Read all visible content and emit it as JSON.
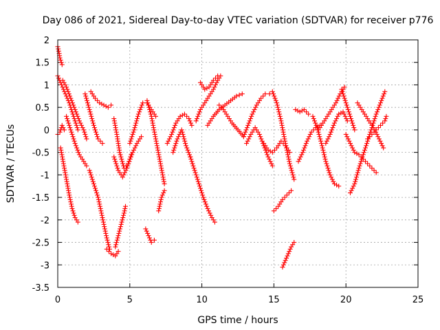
{
  "chart_data": {
    "type": "scatter",
    "title": "Day 086 of 2021, Sidereal Day-to-day VTEC variation (SDTVAR) for receiver p776",
    "xlabel": "GPS time / hours",
    "ylabel": "SDTVAR / TECUs",
    "xlim": [
      0,
      25
    ],
    "ylim": [
      -3.5,
      2
    ],
    "xticks": [
      0,
      5,
      10,
      15,
      20,
      25
    ],
    "xtick_labels": [
      "0",
      "5",
      "10",
      "15",
      "20",
      "25"
    ],
    "yticks": [
      -3.5,
      -3,
      -2.5,
      -2,
      -1.5,
      -1,
      -0.5,
      0,
      0.5,
      1,
      1.5,
      2
    ],
    "ytick_labels": [
      "-3.5",
      "-3",
      "-2.5",
      "-2",
      "-1.5",
      "-1",
      "-0.5",
      "0",
      "0.5",
      "1",
      "1.5",
      "2"
    ],
    "grid": true,
    "marker": "+",
    "color": "#ff0000",
    "series": [
      {
        "name": "s01",
        "x": [
          0.0,
          0.1,
          0.15,
          0.25,
          0.3
        ],
        "y": [
          1.85,
          1.7,
          1.6,
          1.5,
          1.45
        ]
      },
      {
        "name": "s02",
        "x": [
          0.0,
          0.2,
          0.4,
          0.6,
          0.8,
          1.0,
          1.2,
          1.4
        ],
        "y": [
          1.2,
          1.05,
          0.9,
          0.75,
          0.6,
          0.4,
          0.2,
          0.0
        ]
      },
      {
        "name": "s03",
        "x": [
          0.0,
          0.15,
          0.3,
          0.45
        ],
        "y": [
          -0.1,
          -0.05,
          0.1,
          0.0
        ]
      },
      {
        "name": "s04",
        "x": [
          0.2,
          0.4,
          0.6,
          0.8,
          1.0,
          1.2,
          1.4
        ],
        "y": [
          -0.4,
          -0.75,
          -1.1,
          -1.45,
          -1.75,
          -1.95,
          -2.05
        ]
      },
      {
        "name": "s05",
        "x": [
          0.35,
          0.6,
          0.9,
          1.2,
          1.5,
          1.8,
          2.0
        ],
        "y": [
          1.1,
          0.95,
          0.7,
          0.45,
          0.2,
          0.0,
          -0.2
        ]
      },
      {
        "name": "s06",
        "x": [
          0.6,
          0.9,
          1.2,
          1.5,
          1.8,
          2.0
        ],
        "y": [
          0.3,
          0.0,
          -0.3,
          -0.55,
          -0.7,
          -0.8
        ]
      },
      {
        "name": "s07",
        "x": [
          2.3,
          2.6,
          2.9,
          3.2,
          3.5,
          3.7
        ],
        "y": [
          0.85,
          0.7,
          0.6,
          0.55,
          0.5,
          0.55
        ]
      },
      {
        "name": "s08",
        "x": [
          2.2,
          2.5,
          2.8,
          3.0,
          3.2,
          3.4,
          3.6
        ],
        "y": [
          -0.9,
          -1.2,
          -1.5,
          -1.8,
          -2.1,
          -2.4,
          -2.65
        ]
      },
      {
        "name": "s09",
        "x": [
          1.9,
          2.2,
          2.5,
          2.8,
          3.1
        ],
        "y": [
          0.8,
          0.45,
          0.1,
          -0.2,
          -0.3
        ]
      },
      {
        "name": "s10",
        "x": [
          3.4,
          3.7,
          4.0,
          4.2
        ],
        "y": [
          -2.65,
          -2.75,
          -2.8,
          -2.7
        ]
      },
      {
        "name": "s11",
        "x": [
          4.0,
          4.2,
          4.4,
          4.6,
          4.7
        ],
        "y": [
          -2.6,
          -2.35,
          -2.1,
          -1.85,
          -1.7
        ]
      },
      {
        "name": "s12",
        "x": [
          3.9,
          4.1,
          4.3,
          4.6,
          4.9,
          5.2,
          5.5,
          5.8
        ],
        "y": [
          0.25,
          -0.1,
          -0.5,
          -0.85,
          -0.75,
          -0.5,
          -0.3,
          -0.15
        ]
      },
      {
        "name": "s13",
        "x": [
          3.9,
          4.2,
          4.5,
          4.8,
          5.1
        ],
        "y": [
          -0.6,
          -0.9,
          -1.05,
          -0.85,
          -0.55
        ]
      },
      {
        "name": "s14",
        "x": [
          5.0,
          5.3,
          5.6,
          5.9,
          6.2,
          6.5,
          6.8
        ],
        "y": [
          -0.3,
          0.0,
          0.35,
          0.6,
          0.6,
          0.45,
          0.3
        ]
      },
      {
        "name": "s15",
        "x": [
          6.1,
          6.3,
          6.5,
          6.7
        ],
        "y": [
          -2.2,
          -2.35,
          -2.5,
          -2.45
        ]
      },
      {
        "name": "s16",
        "x": [
          6.2,
          6.5,
          6.8,
          7.1,
          7.4
        ],
        "y": [
          0.65,
          0.3,
          -0.2,
          -0.7,
          -1.2
        ]
      },
      {
        "name": "s17",
        "x": [
          7.0,
          7.2,
          7.4
        ],
        "y": [
          -1.8,
          -1.5,
          -1.35
        ]
      },
      {
        "name": "s18",
        "x": [
          7.6,
          7.9,
          8.2,
          8.5,
          8.8,
          9.1,
          9.3
        ],
        "y": [
          -0.3,
          -0.1,
          0.15,
          0.3,
          0.35,
          0.25,
          0.1
        ]
      },
      {
        "name": "s19",
        "x": [
          8.0,
          8.3,
          8.6,
          8.9,
          9.2
        ],
        "y": [
          -0.5,
          -0.2,
          0.0,
          -0.35,
          -0.6
        ]
      },
      {
        "name": "s20",
        "x": [
          9.2,
          9.5,
          9.8,
          10.1,
          10.4,
          10.7,
          10.9
        ],
        "y": [
          -0.6,
          -0.9,
          -1.2,
          -1.5,
          -1.75,
          -1.95,
          -2.05
        ]
      },
      {
        "name": "s21",
        "x": [
          9.6,
          9.9,
          10.2,
          10.5,
          10.8,
          11.1,
          11.3
        ],
        "y": [
          0.2,
          0.45,
          0.6,
          0.75,
          0.9,
          1.1,
          1.2
        ]
      },
      {
        "name": "s22",
        "x": [
          9.9,
          10.2,
          10.5,
          10.8,
          11.1
        ],
        "y": [
          1.05,
          0.9,
          0.95,
          1.1,
          1.2
        ]
      },
      {
        "name": "s23",
        "x": [
          10.4,
          10.8,
          11.2,
          11.6,
          12.0,
          12.4,
          12.8
        ],
        "y": [
          0.1,
          0.3,
          0.45,
          0.55,
          0.65,
          0.75,
          0.8
        ]
      },
      {
        "name": "s24",
        "x": [
          11.2,
          11.5,
          11.8,
          12.1,
          12.5,
          12.9
        ],
        "y": [
          0.55,
          0.45,
          0.3,
          0.15,
          0.0,
          -0.15
        ]
      },
      {
        "name": "s25",
        "x": [
          12.9,
          13.2,
          13.5,
          13.8,
          14.1,
          14.4,
          14.7
        ],
        "y": [
          -0.15,
          0.1,
          0.35,
          0.55,
          0.7,
          0.8,
          0.8
        ]
      },
      {
        "name": "s26",
        "x": [
          13.1,
          13.4,
          13.7,
          14.0,
          14.3,
          14.6,
          14.9
        ],
        "y": [
          -0.3,
          -0.1,
          0.05,
          -0.1,
          -0.35,
          -0.6,
          -0.8
        ]
      },
      {
        "name": "s27",
        "x": [
          14.9,
          15.2,
          15.5,
          15.8,
          16.1,
          16.4
        ],
        "y": [
          0.85,
          0.6,
          0.2,
          -0.3,
          -0.75,
          -1.1
        ]
      },
      {
        "name": "s28",
        "x": [
          15.0,
          15.3,
          15.6,
          15.9,
          16.2
        ],
        "y": [
          -1.8,
          -1.7,
          -1.55,
          -1.45,
          -1.35
        ]
      },
      {
        "name": "s29",
        "x": [
          15.6,
          15.8,
          16.0,
          16.2,
          16.4
        ],
        "y": [
          -3.05,
          -2.9,
          -2.75,
          -2.6,
          -2.5
        ]
      },
      {
        "name": "s30",
        "x": [
          14.3,
          14.6,
          14.9,
          15.2,
          15.5,
          15.8,
          16.1
        ],
        "y": [
          -0.3,
          -0.45,
          -0.5,
          -0.4,
          -0.25,
          -0.35,
          -0.5
        ]
      },
      {
        "name": "s31",
        "x": [
          16.5,
          16.8,
          17.1,
          17.4
        ],
        "y": [
          0.45,
          0.4,
          0.45,
          0.35
        ]
      },
      {
        "name": "s32",
        "x": [
          16.7,
          17.0,
          17.3,
          17.6,
          17.9,
          18.2
        ],
        "y": [
          -0.7,
          -0.5,
          -0.25,
          -0.05,
          0.05,
          0.1
        ]
      },
      {
        "name": "s33",
        "x": [
          17.7,
          18.0,
          18.3,
          18.6,
          18.9,
          19.2,
          19.5
        ],
        "y": [
          0.3,
          0.05,
          -0.3,
          -0.7,
          -1.0,
          -1.2,
          -1.25
        ]
      },
      {
        "name": "s34",
        "x": [
          18.1,
          18.4,
          18.7,
          19.0,
          19.3,
          19.6,
          19.9
        ],
        "y": [
          0.0,
          0.15,
          0.3,
          0.45,
          0.6,
          0.8,
          0.95
        ]
      },
      {
        "name": "s35",
        "x": [
          18.6,
          18.9,
          19.2,
          19.5,
          19.8,
          20.1
        ],
        "y": [
          -0.3,
          -0.1,
          0.15,
          0.35,
          0.4,
          0.2
        ]
      },
      {
        "name": "s36",
        "x": [
          19.7,
          20.0,
          20.3,
          20.6
        ],
        "y": [
          0.9,
          0.6,
          0.3,
          0.0
        ]
      },
      {
        "name": "s37",
        "x": [
          20.0,
          20.3,
          20.6,
          20.9,
          21.2,
          21.5,
          21.8,
          22.1
        ],
        "y": [
          -0.1,
          -0.3,
          -0.5,
          -0.55,
          -0.65,
          -0.75,
          -0.85,
          -0.95
        ]
      },
      {
        "name": "s38",
        "x": [
          20.3,
          20.6,
          20.9,
          21.2,
          21.5,
          21.8,
          22.1,
          22.4,
          22.7
        ],
        "y": [
          -1.4,
          -1.2,
          -0.85,
          -0.55,
          -0.25,
          0.05,
          0.35,
          0.6,
          0.85
        ]
      },
      {
        "name": "s39",
        "x": [
          21.5,
          21.8,
          22.1,
          22.4,
          22.7,
          22.8
        ],
        "y": [
          -0.2,
          -0.1,
          0.0,
          0.1,
          0.2,
          0.3
        ]
      },
      {
        "name": "s40",
        "x": [
          20.8,
          21.1,
          21.4,
          21.7,
          22.0,
          22.3,
          22.6
        ],
        "y": [
          0.6,
          0.45,
          0.3,
          0.15,
          0.0,
          -0.2,
          -0.4
        ]
      }
    ]
  }
}
